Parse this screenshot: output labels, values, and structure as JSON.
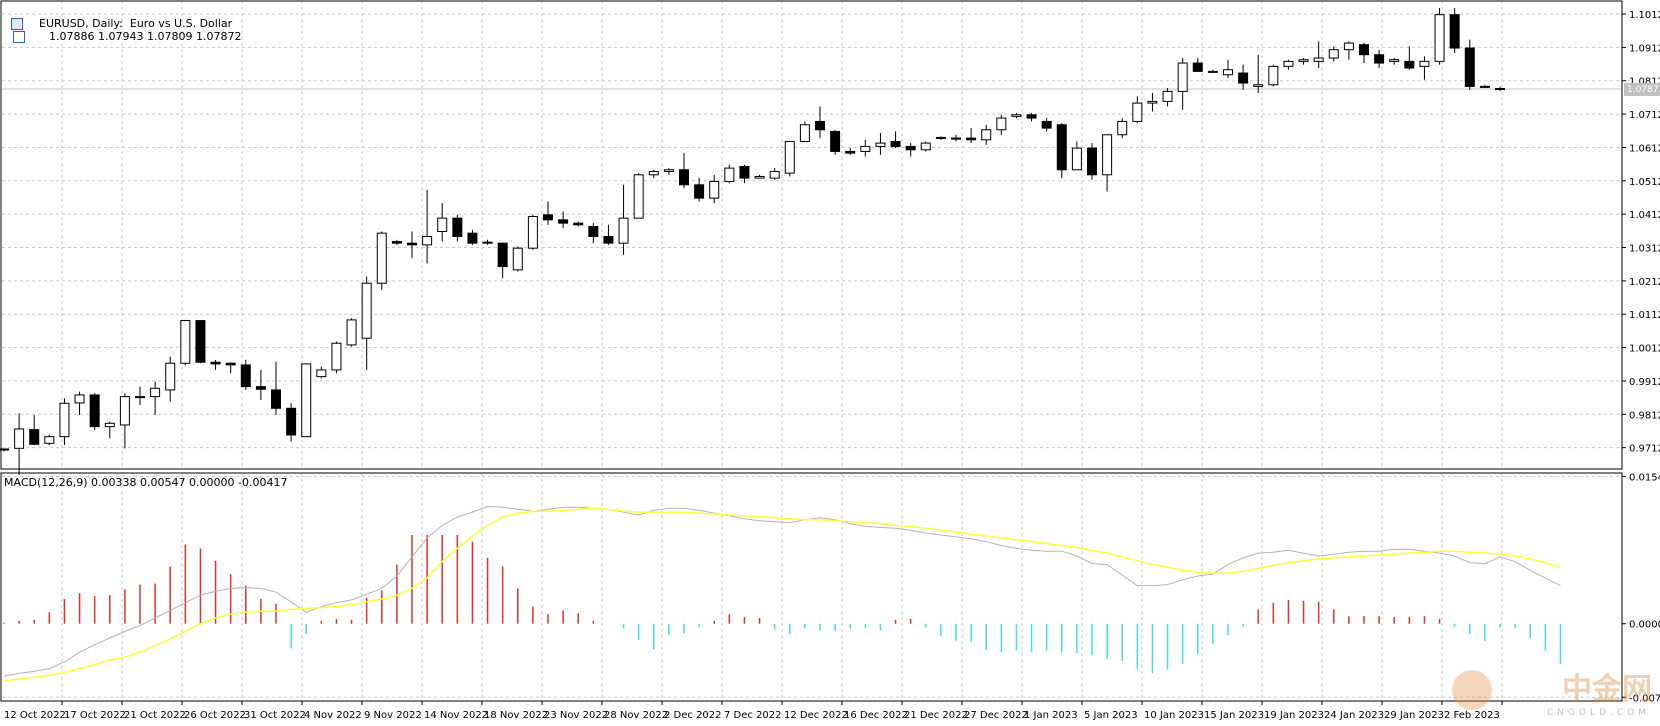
{
  "header": {
    "symbol_title": "EURUSD, Daily:  Euro vs U.S. Dollar",
    "ohlc": "1.07886 1.07943 1.07809 1.07872",
    "macd_title": "MACD(12,26,9) 0.00338 0.00547 0.00000 -0.00417"
  },
  "price_tag": "1.07872",
  "watermark": {
    "text": "中金网",
    "sub": "CNGOLD.COM"
  },
  "colors": {
    "bull_fill": "#ffffff",
    "bear_fill": "#000000",
    "grid": "#c8c8c8",
    "hist_pos": "#e03030",
    "hist_neg": "#40e0e0",
    "macd_line": "#b4b4b4",
    "signal_line": "#ffff33"
  },
  "chart_data": [
    {
      "type": "candlestick",
      "title": "EURUSD, Daily",
      "y_ticks": [
        "1.10120",
        "1.09120",
        "1.08120",
        "1.07120",
        "1.06120",
        "1.05120",
        "1.04120",
        "1.03120",
        "1.02120",
        "1.01120",
        "1.00120",
        "0.99120",
        "0.98120",
        "0.97120"
      ],
      "ylim": [
        0.9648,
        1.1051
      ],
      "x_ticks": [
        "12 Oct 2022",
        "17 Oct 2022",
        "21 Oct 2022",
        "26 Oct 2022",
        "31 Oct 2022",
        "4 Nov 2022",
        "9 Nov 2022",
        "14 Nov 2022",
        "18 Nov 2022",
        "23 Nov 2022",
        "28 Nov 2022",
        "2 Dec 2022",
        "7 Dec 2022",
        "12 Dec 2022",
        "16 Dec 2022",
        "21 Dec 2022",
        "27 Dec 2022",
        "1 Jan 2023",
        "5 Jan 2023",
        "10 Jan 2023",
        "15 Jan 2023",
        "19 Jan 2023",
        "24 Jan 2023",
        "29 Jan 2023",
        "2 Feb 2023"
      ],
      "current_price": 1.07872,
      "candles": [
        [
          0.9705,
          0.971,
          0.97,
          0.9708
        ],
        [
          0.971,
          0.9815,
          0.963,
          0.9768
        ],
        [
          0.9766,
          0.981,
          0.972,
          0.9722
        ],
        [
          0.9725,
          0.975,
          0.972,
          0.9745
        ],
        [
          0.9745,
          0.986,
          0.972,
          0.9845
        ],
        [
          0.9846,
          0.988,
          0.981,
          0.987
        ],
        [
          0.987,
          0.9875,
          0.9765,
          0.9775
        ],
        [
          0.9775,
          0.979,
          0.974,
          0.9785
        ],
        [
          0.978,
          0.9875,
          0.971,
          0.9865
        ],
        [
          0.9865,
          0.9895,
          0.984,
          0.9862
        ],
        [
          0.9865,
          0.991,
          0.981,
          0.989
        ],
        [
          0.9885,
          0.9985,
          0.985,
          0.9965
        ],
        [
          0.9965,
          1.0095,
          0.996,
          1.0093
        ],
        [
          1.0093,
          1.0092,
          0.9965,
          0.9968
        ],
        [
          0.9968,
          0.9975,
          0.9945,
          0.9963
        ],
        [
          0.9965,
          0.9968,
          0.9935,
          0.996
        ],
        [
          0.996,
          0.9975,
          0.9885,
          0.9895
        ],
        [
          0.9895,
          0.9945,
          0.9855,
          0.9887
        ],
        [
          0.9885,
          0.997,
          0.981,
          0.983
        ],
        [
          0.983,
          0.9845,
          0.973,
          0.975
        ],
        [
          0.9745,
          0.9965,
          0.9745,
          0.9963
        ],
        [
          0.9925,
          0.9955,
          0.992,
          0.9945
        ],
        [
          0.9945,
          1.003,
          0.9935,
          1.0025
        ],
        [
          1.002,
          1.01,
          1.0015,
          1.0095
        ],
        [
          1.004,
          1.0225,
          0.9945,
          1.0205
        ],
        [
          1.0205,
          1.036,
          1.0185,
          1.0355
        ],
        [
          1.033,
          1.0335,
          1.032,
          1.0325
        ],
        [
          1.0325,
          1.036,
          1.028,
          1.032
        ],
        [
          1.032,
          1.0485,
          1.0265,
          1.0345
        ],
        [
          1.036,
          1.0445,
          1.033,
          1.04
        ],
        [
          1.04,
          1.041,
          1.033,
          1.0345
        ],
        [
          1.0355,
          1.0365,
          1.032,
          1.0325
        ],
        [
          1.0325,
          1.0335,
          1.032,
          1.0328
        ],
        [
          1.0325,
          1.0325,
          1.022,
          1.0255
        ],
        [
          1.0245,
          1.0315,
          1.024,
          1.031
        ],
        [
          1.031,
          1.041,
          1.0305,
          1.0405
        ],
        [
          1.041,
          1.045,
          1.038,
          1.0395
        ],
        [
          1.0395,
          1.042,
          1.037,
          1.0385
        ],
        [
          1.0385,
          1.039,
          1.0375,
          1.038
        ],
        [
          1.0375,
          1.0385,
          1.0325,
          1.0345
        ],
        [
          1.0345,
          1.038,
          1.032,
          1.0325
        ],
        [
          1.0325,
          1.05,
          1.029,
          1.04
        ],
        [
          1.04,
          1.0535,
          1.04,
          1.053
        ],
        [
          1.053,
          1.0545,
          1.052,
          1.054
        ],
        [
          1.054,
          1.055,
          1.053,
          1.0545
        ],
        [
          1.0545,
          1.0595,
          1.049,
          1.05
        ],
        [
          1.05,
          1.052,
          1.045,
          1.046
        ],
        [
          1.046,
          1.053,
          1.0445,
          1.051
        ],
        [
          1.051,
          1.056,
          1.0505,
          1.055
        ],
        [
          1.0555,
          1.056,
          1.0505,
          1.052
        ],
        [
          1.052,
          1.053,
          1.052,
          1.0525
        ],
        [
          1.052,
          1.055,
          1.0515,
          1.054
        ],
        [
          1.0535,
          1.063,
          1.0525,
          1.063
        ],
        [
          1.063,
          1.069,
          1.063,
          1.068
        ],
        [
          1.069,
          1.0735,
          1.064,
          1.0665
        ],
        [
          1.066,
          1.0665,
          1.059,
          1.06
        ],
        [
          1.06,
          1.061,
          1.059,
          1.0595
        ],
        [
          1.06,
          1.0635,
          1.0585,
          1.0615
        ],
        [
          1.0615,
          1.0655,
          1.059,
          1.0625
        ],
        [
          1.063,
          1.066,
          1.061,
          1.0615
        ],
        [
          1.0615,
          1.0625,
          1.0585,
          1.0605
        ],
        [
          1.0605,
          1.063,
          1.06,
          1.0625
        ],
        [
          1.064,
          1.0645,
          1.0635,
          1.0642
        ],
        [
          1.064,
          1.065,
          1.063,
          1.064
        ],
        [
          1.064,
          1.067,
          1.0625,
          1.0635
        ],
        [
          1.0635,
          1.068,
          1.062,
          1.0665
        ],
        [
          1.0665,
          1.071,
          1.065,
          1.07
        ],
        [
          1.0705,
          1.0715,
          1.07,
          1.071
        ],
        [
          1.071,
          1.0715,
          1.069,
          1.07
        ],
        [
          1.069,
          1.07,
          1.066,
          1.067
        ],
        [
          1.068,
          1.0685,
          1.052,
          1.0545
        ],
        [
          1.0545,
          1.063,
          1.0545,
          1.061
        ],
        [
          1.061,
          1.0625,
          1.0515,
          1.053
        ],
        [
          1.053,
          1.065,
          1.048,
          1.065
        ],
        [
          1.065,
          1.07,
          1.064,
          1.069
        ],
        [
          1.069,
          1.0765,
          1.0685,
          1.0745
        ],
        [
          1.0745,
          1.0775,
          1.072,
          1.075
        ],
        [
          1.075,
          1.079,
          1.0735,
          1.078
        ],
        [
          1.078,
          1.088,
          1.0725,
          1.0865
        ],
        [
          1.0865,
          1.088,
          1.084,
          1.084
        ],
        [
          1.084,
          1.0845,
          1.0835,
          1.0838
        ],
        [
          1.083,
          1.0875,
          1.082,
          1.0845
        ],
        [
          1.0835,
          1.086,
          1.0785,
          1.0805
        ],
        [
          1.0795,
          1.089,
          1.0775,
          1.08
        ],
        [
          1.08,
          1.086,
          1.0795,
          1.0855
        ],
        [
          1.0855,
          1.0875,
          1.0845,
          1.087
        ],
        [
          1.087,
          1.088,
          1.086,
          1.0875
        ],
        [
          1.087,
          1.093,
          1.085,
          1.088
        ],
        [
          1.088,
          1.0915,
          1.087,
          1.0905
        ],
        [
          1.0905,
          1.093,
          1.0875,
          1.0925
        ],
        [
          1.092,
          1.0925,
          1.0865,
          1.089
        ],
        [
          1.089,
          1.0905,
          1.085,
          1.0865
        ],
        [
          1.087,
          1.088,
          1.086,
          1.0875
        ],
        [
          1.087,
          1.0915,
          1.0845,
          1.085
        ],
        [
          1.0855,
          1.0885,
          1.0815,
          1.087
        ],
        [
          1.087,
          1.103,
          1.086,
          1.101
        ],
        [
          1.101,
          1.103,
          1.0895,
          1.091
        ],
        [
          1.091,
          1.0935,
          1.0785,
          1.0795
        ],
        [
          1.0795,
          1.08,
          1.079,
          1.0792
        ],
        [
          1.07886,
          1.07943,
          1.07809,
          1.07872
        ]
      ]
    },
    {
      "type": "macd",
      "title": "MACD(12,26,9)",
      "y_ticks": [
        "0.01545",
        "0.00000",
        "-0.00771"
      ],
      "ylim": [
        -0.0081,
        0.0158
      ],
      "macd": [
        -0.0055,
        -0.0052,
        -0.005,
        -0.0047,
        -0.004,
        -0.003,
        -0.0022,
        -0.0015,
        -0.0008,
        -0.0002,
        0.0006,
        0.0014,
        0.0022,
        0.003,
        0.0034,
        0.0037,
        0.0038,
        0.0037,
        0.0033,
        0.0023,
        0.0012,
        0.0018,
        0.0022,
        0.0025,
        0.0031,
        0.0037,
        0.005,
        0.007,
        0.009,
        0.0103,
        0.0112,
        0.0117,
        0.0123,
        0.0122,
        0.012,
        0.0118,
        0.012,
        0.0122,
        0.0122,
        0.0121,
        0.012,
        0.0117,
        0.0114,
        0.0119,
        0.0121,
        0.0121,
        0.0119,
        0.0116,
        0.0113,
        0.011,
        0.0108,
        0.0107,
        0.0106,
        0.0109,
        0.0111,
        0.0109,
        0.0105,
        0.0102,
        0.0101,
        0.01,
        0.0098,
        0.0095,
        0.0093,
        0.0091,
        0.0089,
        0.0086,
        0.0082,
        0.0079,
        0.0077,
        0.0076,
        0.0076,
        0.0071,
        0.0063,
        0.0062,
        0.0051,
        0.004,
        0.004,
        0.0041,
        0.0046,
        0.005,
        0.0052,
        0.0062,
        0.0069,
        0.0074,
        0.0075,
        0.0077,
        0.0074,
        0.0071,
        0.0073,
        0.0075,
        0.0076,
        0.0076,
        0.0078,
        0.0078,
        0.0076,
        0.0074,
        0.0071,
        0.0064,
        0.0063,
        0.007,
        0.0065,
        0.0056,
        0.0048,
        0.004
      ],
      "signal": [
        -0.006,
        -0.0058,
        -0.0056,
        -0.0054,
        -0.0051,
        -0.0047,
        -0.0043,
        -0.0038,
        -0.0035,
        -0.003,
        -0.0023,
        -0.0016,
        -0.0008,
        0.0,
        0.0006,
        0.001,
        0.0012,
        0.0013,
        0.0013,
        0.0015,
        0.0016,
        0.0017,
        0.0018,
        0.002,
        0.0023,
        0.0026,
        0.003,
        0.0037,
        0.0048,
        0.0065,
        0.0079,
        0.0092,
        0.0103,
        0.0112,
        0.0116,
        0.0118,
        0.0118,
        0.0119,
        0.012,
        0.0121,
        0.012,
        0.0118,
        0.0117,
        0.0117,
        0.0117,
        0.0117,
        0.0116,
        0.0115,
        0.0114,
        0.0113,
        0.0112,
        0.0111,
        0.011,
        0.0109,
        0.0109,
        0.0108,
        0.0107,
        0.0106,
        0.0105,
        0.0103,
        0.0102,
        0.01,
        0.0098,
        0.0096,
        0.0094,
        0.0092,
        0.009,
        0.0088,
        0.0086,
        0.0084,
        0.0082,
        0.008,
        0.0077,
        0.0074,
        0.007,
        0.0066,
        0.0062,
        0.0059,
        0.0056,
        0.0054,
        0.0053,
        0.0053,
        0.0055,
        0.0058,
        0.0061,
        0.0064,
        0.0066,
        0.0068,
        0.0069,
        0.007,
        0.0071,
        0.0072,
        0.0073,
        0.0074,
        0.0075,
        0.0076,
        0.0076,
        0.0075,
        0.0074,
        0.0073,
        0.0071,
        0.0068,
        0.0064,
        0.0059
      ],
      "histogram": [
        0.0001,
        0.0003,
        0.0004,
        0.0012,
        0.0026,
        0.0032,
        0.0029,
        0.003,
        0.0036,
        0.0041,
        0.0042,
        0.006,
        0.0083,
        0.0079,
        0.0066,
        0.0052,
        0.004,
        0.0026,
        0.0021,
        -0.0026,
        -0.0011,
        0.0003,
        0.0005,
        0.0004,
        0.0027,
        0.0035,
        0.0062,
        0.0093,
        0.0093,
        0.0093,
        0.0093,
        0.0086,
        0.0069,
        0.006,
        0.0037,
        0.0018,
        0.001,
        0.0014,
        0.0011,
        0.0003,
        0.0,
        -0.0005,
        -0.0017,
        -0.0027,
        -0.0012,
        -0.001,
        -0.0004,
        0.0003,
        0.001,
        0.0007,
        0.0006,
        -0.0006,
        -0.0011,
        -0.0005,
        -0.0007,
        -0.0008,
        -0.0005,
        -0.0005,
        -0.0007,
        0.0004,
        0.0005,
        -0.0004,
        -0.0013,
        -0.0018,
        -0.0019,
        -0.0028,
        -0.003,
        -0.0028,
        -0.003,
        -0.0028,
        -0.003,
        -0.0031,
        -0.0033,
        -0.0037,
        -0.0039,
        -0.0048,
        -0.0052,
        -0.0048,
        -0.0042,
        -0.0032,
        -0.0021,
        -0.0012,
        -0.0003,
        0.0015,
        0.0022,
        0.0025,
        0.0024,
        0.0023,
        0.0015,
        0.0008,
        0.0008,
        0.0008,
        0.0007,
        0.0007,
        0.0008,
        0.0005,
        -0.0003,
        -0.0011,
        -0.0018,
        -0.0004,
        -0.0005,
        -0.0015,
        -0.0028,
        -0.0042
      ]
    }
  ]
}
